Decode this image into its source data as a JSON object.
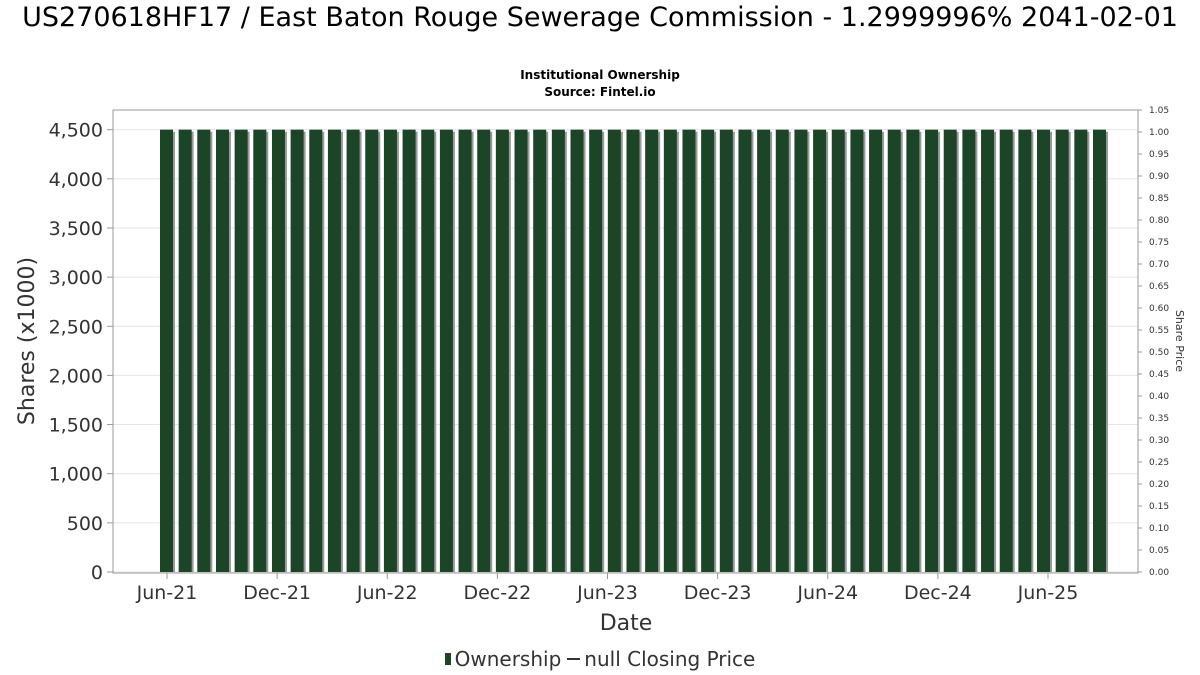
{
  "chart_data": {
    "type": "bar",
    "title": "US270618HF17 / East Baton Rouge Sewerage Commission - 1.2999996% 2041-02-01",
    "subtitle_lines": [
      "Institutional Ownership",
      "Source: Fintel.io"
    ],
    "xlabel": "Date",
    "ylabel": "Shares (x1000)",
    "y2label": "Share Price",
    "ylim": [
      0,
      4700
    ],
    "y2lim": [
      0,
      1.05
    ],
    "yticks": [
      "0",
      "500",
      "1,000",
      "1,500",
      "2,000",
      "2,500",
      "3,000",
      "3,500",
      "4,000",
      "4,500"
    ],
    "y2ticks": [
      "0.00",
      "0.05",
      "0.10",
      "0.15",
      "0.20",
      "0.25",
      "0.30",
      "0.35",
      "0.40",
      "0.45",
      "0.50",
      "0.55",
      "0.60",
      "0.65",
      "0.70",
      "0.75",
      "0.80",
      "0.85",
      "0.90",
      "0.95",
      "1.00",
      "1.05"
    ],
    "xticks": [
      "Jun-21",
      "Dec-21",
      "Jun-22",
      "Dec-22",
      "Jun-23",
      "Dec-23",
      "Jun-24",
      "Dec-24",
      "Jun-25"
    ],
    "bar_count": 51,
    "bar_value": 4500,
    "grid": true,
    "legend_position": "bottom",
    "series": [
      {
        "name": "Ownership",
        "color": "#1c4527",
        "kind": "bar"
      },
      {
        "name": "null Closing Price",
        "color": "#333333",
        "kind": "line"
      }
    ]
  }
}
